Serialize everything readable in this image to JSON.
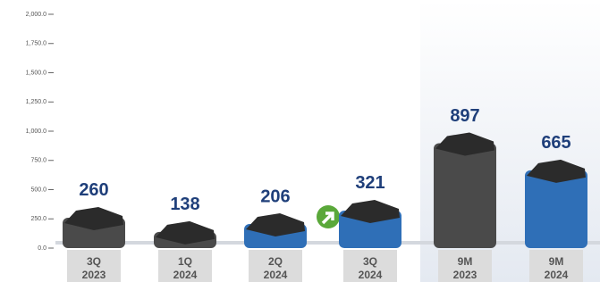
{
  "chart_data": {
    "type": "bar",
    "categories": [
      "3Q 2023",
      "1Q 2024",
      "2Q 2024",
      "3Q 2024",
      "9M 2023",
      "9M 2024"
    ],
    "values": [
      260,
      138,
      206,
      321,
      897,
      665
    ],
    "colors": [
      "#4a4a4a",
      "#4a4a4a",
      "#2f6fb7",
      "#2f6fb7",
      "#4a4a4a",
      "#2f6fb7"
    ],
    "ylim": [
      0,
      2000
    ],
    "yticks": [
      {
        "value": 0,
        "label": "0.0"
      },
      {
        "value": 250,
        "label": "250.0"
      },
      {
        "value": 500,
        "label": "500.0"
      },
      {
        "value": 750,
        "label": "750.0"
      },
      {
        "value": 1000,
        "label": "1,000.0"
      },
      {
        "value": 1250,
        "label": "1,250.0"
      },
      {
        "value": 1500,
        "label": "1,500.0"
      },
      {
        "value": 1750,
        "label": "1,750.0"
      },
      {
        "value": 2000,
        "label": "2,000.0"
      }
    ],
    "grid": false
  }
}
